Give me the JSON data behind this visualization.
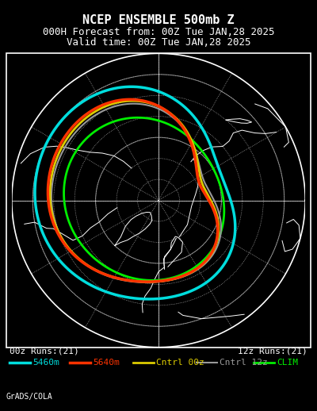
{
  "title_line1": "NCEP ENSEMBLE 500mb Z",
  "title_line2": "000H Forecast from: 00Z Tue JAN,28 2025",
  "title_line3": "Valid time: 00Z Tue JAN,28 2025",
  "footer_left": "00z Runs:(21)",
  "footer_right": "12z Runs:(21)",
  "credit": "GrADS/COLA",
  "bg_color": "#000000",
  "border_color": "#ffffff",
  "grid_color": "#ffffff",
  "coast_color": "#ffffff",
  "title_fontsize": 11,
  "subtitle_fontsize": 9,
  "legend_fontsize": 8,
  "footer_fontsize": 8,
  "credit_fontsize": 7,
  "legend_items": [
    {
      "label": "5460m",
      "color": "#00dddd",
      "lw": 2.5
    },
    {
      "label": "5640m",
      "color": "#ff3300",
      "lw": 2.5
    },
    {
      "label": "Cntrl 00z",
      "color": "#ddcc00",
      "lw": 2.0
    },
    {
      "label": "Cntrl 12z",
      "color": "#999999",
      "lw": 1.5
    },
    {
      "label": "CLIM",
      "color": "#00ee00",
      "lw": 2.0
    }
  ],
  "lat_circles": [
    30,
    40,
    50,
    60,
    70,
    80
  ],
  "lon_lines_dotted": [
    -150,
    -120,
    -90,
    -60,
    -30,
    0,
    30,
    60,
    90,
    120,
    150,
    180
  ],
  "lon_lines_solid": [
    -90,
    0,
    90,
    180
  ],
  "lat_solid": [
    30,
    60
  ],
  "south_lat": 20
}
